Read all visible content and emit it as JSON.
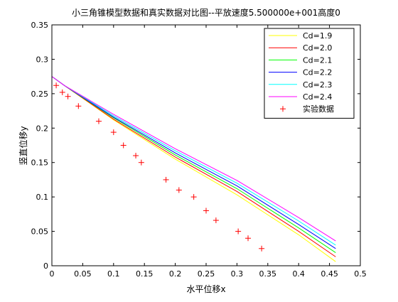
{
  "chart_data": {
    "type": "line",
    "title": "小三角锥模型数据和真实数据对比图--平放速度5.500000e+001高度0",
    "xlabel": "水平位移x",
    "ylabel": "竖直位移y",
    "xlim": [
      0,
      0.5
    ],
    "ylim": [
      0,
      0.35
    ],
    "xticks": [
      0,
      0.05,
      0.1,
      0.15,
      0.2,
      0.25,
      0.3,
      0.35,
      0.4,
      0.45,
      0.5
    ],
    "xtick_labels": [
      "0",
      "0.05",
      "0.1",
      "0.15",
      "0.2",
      "0.25",
      "0.3",
      "0.35",
      "0.4",
      "0.45",
      "0.5"
    ],
    "yticks": [
      0,
      0.05,
      0.1,
      0.15,
      0.2,
      0.25,
      0.3,
      0.35
    ],
    "ytick_labels": [
      "0",
      "0.05",
      "0.1",
      "0.15",
      "0.2",
      "0.25",
      "0.3",
      "0.35"
    ],
    "grid": false,
    "legend_position": "top-right",
    "series": [
      {
        "name": "Cd=1.9",
        "color": "#ffff00",
        "x": [
          0,
          0.02,
          0.1,
          0.2,
          0.3,
          0.4,
          0.46
        ],
        "y": [
          0.275,
          0.262,
          0.212,
          0.155,
          0.103,
          0.045,
          0.006
        ]
      },
      {
        "name": "Cd=2.0",
        "color": "#ff0000",
        "x": [
          0,
          0.02,
          0.1,
          0.2,
          0.3,
          0.4,
          0.46
        ],
        "y": [
          0.275,
          0.262,
          0.213,
          0.158,
          0.108,
          0.05,
          0.013
        ]
      },
      {
        "name": "Cd=2.1",
        "color": "#00ff00",
        "x": [
          0,
          0.02,
          0.1,
          0.2,
          0.3,
          0.4,
          0.46
        ],
        "y": [
          0.275,
          0.262,
          0.215,
          0.161,
          0.112,
          0.055,
          0.019
        ]
      },
      {
        "name": "Cd=2.2",
        "color": "#0000ff",
        "x": [
          0,
          0.02,
          0.1,
          0.2,
          0.3,
          0.4,
          0.46
        ],
        "y": [
          0.275,
          0.262,
          0.216,
          0.164,
          0.116,
          0.06,
          0.025
        ]
      },
      {
        "name": "Cd=2.3",
        "color": "#00ffff",
        "x": [
          0,
          0.02,
          0.1,
          0.2,
          0.3,
          0.4,
          0.46
        ],
        "y": [
          0.275,
          0.262,
          0.218,
          0.167,
          0.12,
          0.065,
          0.03
        ]
      },
      {
        "name": "Cd=2.4",
        "color": "#ff00ff",
        "x": [
          0,
          0.02,
          0.1,
          0.2,
          0.3,
          0.4,
          0.46
        ],
        "y": [
          0.275,
          0.262,
          0.22,
          0.17,
          0.124,
          0.07,
          0.036
        ]
      }
    ],
    "scatter": {
      "name": "实验数据",
      "color": "#ff0000",
      "marker": "plus",
      "x": [
        0.007,
        0.017,
        0.026,
        0.043,
        0.076,
        0.1,
        0.116,
        0.136,
        0.145,
        0.185,
        0.206,
        0.23,
        0.25,
        0.266,
        0.302,
        0.318,
        0.34
      ],
      "y": [
        0.262,
        0.252,
        0.246,
        0.232,
        0.21,
        0.194,
        0.175,
        0.16,
        0.15,
        0.125,
        0.11,
        0.1,
        0.08,
        0.066,
        0.05,
        0.04,
        0.025
      ]
    }
  }
}
